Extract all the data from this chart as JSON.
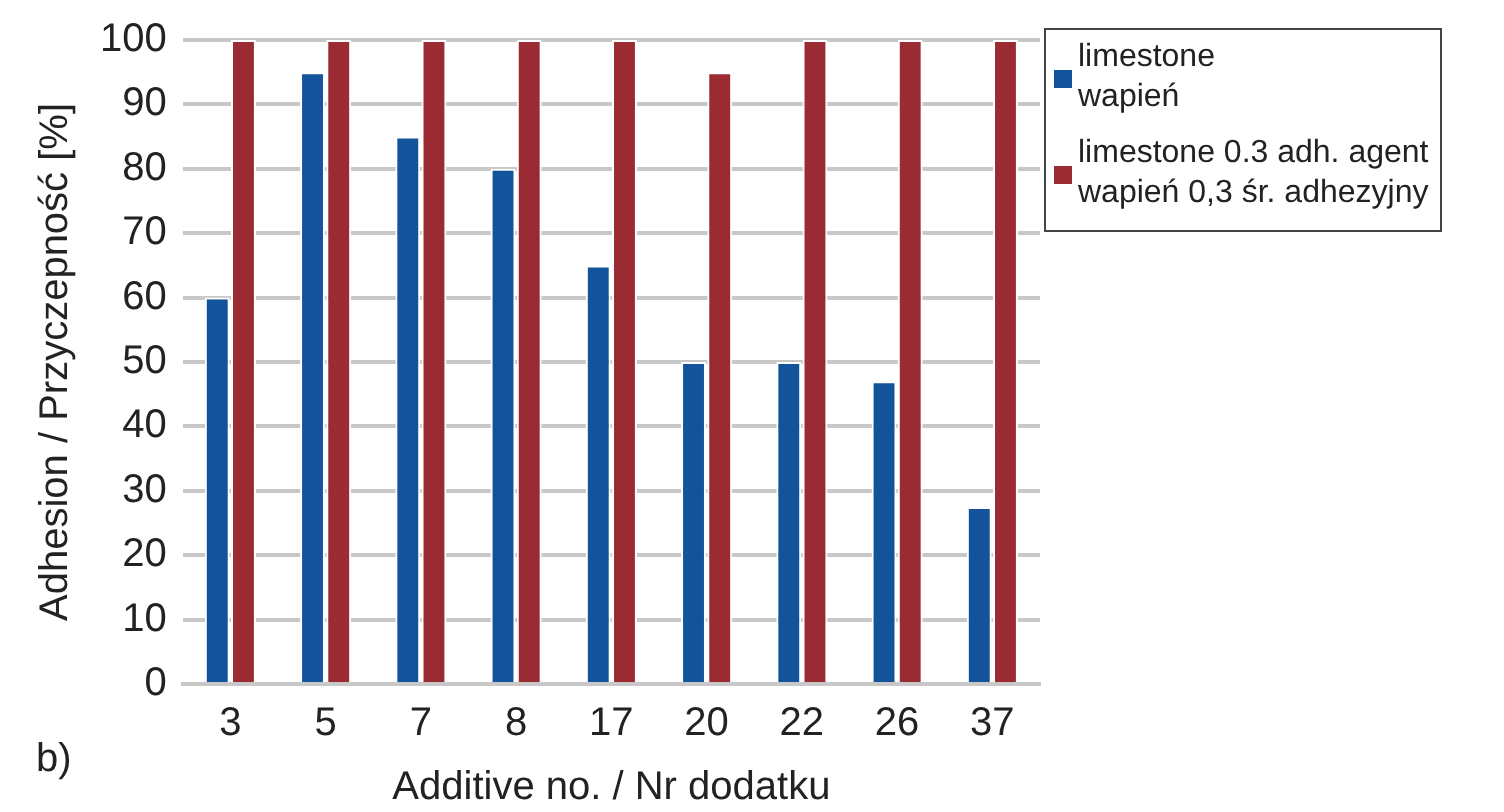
{
  "chart_data": {
    "type": "bar",
    "xlabel": "Additive no. / Nr dodatku",
    "ylabel": "Adhesion / Przyczepność [%]",
    "categories": [
      "3",
      "5",
      "7",
      "8",
      "17",
      "20",
      "22",
      "26",
      "37"
    ],
    "series": [
      {
        "name": "limestone\nwapień",
        "color": "#12539b",
        "values": [
          60,
          95,
          85,
          80,
          65,
          50,
          50,
          47,
          27.5
        ]
      },
      {
        "name": "limestone 0.3 adh. agent\nwapień 0,3 śr. adhezyjny",
        "color": "#9b2b33",
        "values": [
          100,
          100,
          100,
          100,
          100,
          95,
          100,
          100,
          100
        ]
      }
    ],
    "ylim": [
      0,
      100
    ],
    "yticks": [
      0,
      10,
      20,
      30,
      40,
      50,
      60,
      70,
      80,
      90,
      100
    ],
    "grid": "y",
    "legend": "right",
    "annotations": [
      "b)"
    ]
  }
}
